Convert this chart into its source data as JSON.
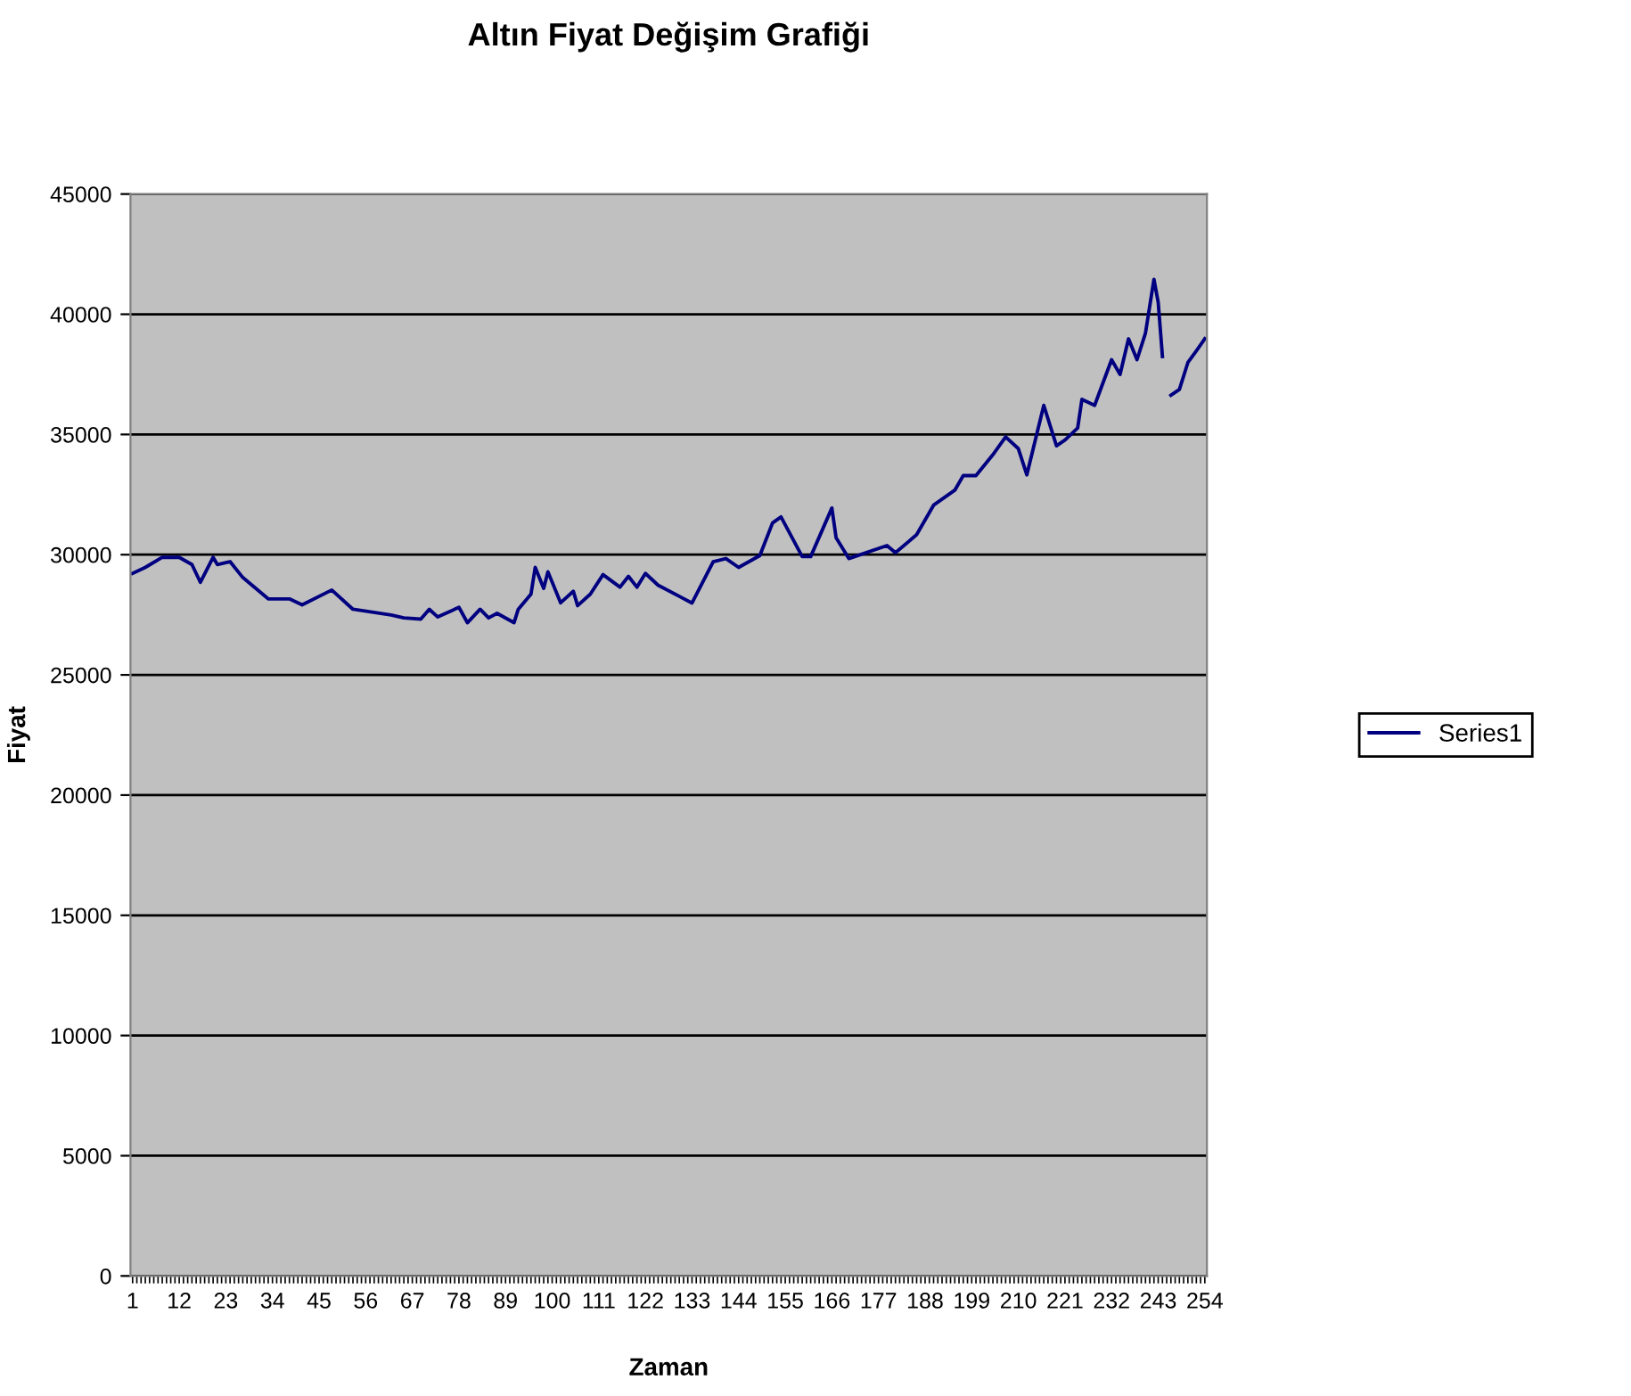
{
  "chart_data": {
    "type": "line",
    "title": "Altın Fiyat Değişim Grafiği",
    "xlabel": "Zaman",
    "ylabel": "Fiyat",
    "series": [
      {
        "name": "Series1",
        "color": "#000080",
        "x": [
          1,
          4,
          8,
          12,
          15,
          17,
          20,
          21,
          24,
          27,
          33,
          38,
          41,
          48,
          53,
          62,
          65,
          69,
          71,
          73,
          78,
          80,
          83,
          85,
          87,
          91,
          92,
          95,
          96,
          98,
          99,
          102,
          105,
          106,
          109,
          112,
          116,
          118,
          120,
          122,
          125,
          133,
          138,
          141,
          144,
          149,
          152,
          154,
          159,
          161,
          166,
          167,
          170,
          174,
          179,
          181,
          186,
          190,
          195,
          197,
          200,
          204,
          207,
          210,
          212,
          216,
          219,
          221,
          224,
          225,
          228,
          232,
          234,
          236,
          238,
          240,
          242,
          243,
          244,
          245,
          246,
          248,
          250,
          252,
          254
        ],
        "values": [
          29220,
          29470,
          29890,
          29890,
          29590,
          28850,
          29890,
          29590,
          29710,
          29050,
          28160,
          28160,
          27910,
          28530,
          27730,
          27490,
          27370,
          27320,
          27730,
          27410,
          27810,
          27170,
          27730,
          27370,
          27560,
          27170,
          27730,
          28360,
          29470,
          28600,
          29290,
          28000,
          28480,
          27880,
          28360,
          29170,
          28650,
          29100,
          28650,
          29220,
          28730,
          27990,
          29710,
          29840,
          29470,
          29960,
          31320,
          31570,
          29920,
          29920,
          31940,
          30700,
          29840,
          30080,
          30380,
          30080,
          30830,
          32060,
          32680,
          33290,
          33290,
          34160,
          34900,
          34410,
          33320,
          36210,
          34530,
          34770,
          35270,
          36460,
          36210,
          38110,
          37500,
          38980,
          38110,
          39220,
          41450,
          40500,
          38240,
          null,
          36630,
          36870,
          37990,
          38480,
          38980
        ]
      }
    ],
    "ylim": [
      0,
      45000
    ],
    "yticks": [
      0,
      5000,
      10000,
      15000,
      20000,
      25000,
      30000,
      35000,
      40000,
      45000
    ],
    "xlim": [
      0.5,
      254.5
    ],
    "xticks": [
      1,
      {
        "value": 2,
        "label": null
      },
      {
        "value": 3,
        "label": null
      },
      {
        "value": 4,
        "label": null
      },
      {
        "value": 5,
        "label": null
      },
      {
        "value": 6,
        "label": null
      },
      {
        "value": 7,
        "label": null
      },
      {
        "value": 8,
        "label": null
      },
      {
        "value": 9,
        "label": null
      },
      {
        "value": 10,
        "label": null
      },
      {
        "value": 11,
        "label": null
      },
      12,
      {
        "value": 13,
        "label": null
      },
      {
        "value": 14,
        "label": null
      },
      {
        "value": 15,
        "label": null
      },
      {
        "value": 16,
        "label": null
      },
      {
        "value": 17,
        "label": null
      },
      {
        "value": 18,
        "label": null
      },
      {
        "value": 19,
        "label": null
      },
      {
        "value": 20,
        "label": null
      },
      {
        "value": 21,
        "label": null
      },
      {
        "value": 22,
        "label": null
      },
      23,
      {
        "value": 24,
        "label": null
      },
      {
        "value": 25,
        "label": null
      },
      {
        "value": 26,
        "label": null
      },
      {
        "value": 27,
        "label": null
      },
      {
        "value": 28,
        "label": null
      },
      {
        "value": 29,
        "label": null
      },
      {
        "value": 30,
        "label": null
      },
      {
        "value": 31,
        "label": null
      },
      {
        "value": 32,
        "label": null
      },
      {
        "value": 33,
        "label": null
      },
      34,
      {
        "value": 35,
        "label": null
      },
      {
        "value": 36,
        "label": null
      },
      {
        "value": 37,
        "label": null
      },
      {
        "value": 38,
        "label": null
      },
      {
        "value": 39,
        "label": null
      },
      {
        "value": 40,
        "label": null
      },
      {
        "value": 41,
        "label": null
      },
      {
        "value": 42,
        "label": null
      },
      {
        "value": 43,
        "label": null
      },
      {
        "value": 44,
        "label": null
      },
      45,
      {
        "value": 46,
        "label": null
      },
      {
        "value": 47,
        "label": null
      },
      {
        "value": 48,
        "label": null
      },
      {
        "value": 49,
        "label": null
      },
      {
        "value": 50,
        "label": null
      },
      {
        "value": 51,
        "label": null
      },
      {
        "value": 52,
        "label": null
      },
      {
        "value": 53,
        "label": null
      },
      {
        "value": 54,
        "label": null
      },
      {
        "value": 55,
        "label": null
      },
      56,
      {
        "value": 57,
        "label": null
      },
      {
        "value": 58,
        "label": null
      },
      {
        "value": 59,
        "label": null
      },
      {
        "value": 60,
        "label": null
      },
      {
        "value": 61,
        "label": null
      },
      {
        "value": 62,
        "label": null
      },
      {
        "value": 63,
        "label": null
      },
      {
        "value": 64,
        "label": null
      },
      {
        "value": 65,
        "label": null
      },
      {
        "value": 66,
        "label": null
      },
      67,
      {
        "value": 68,
        "label": null
      },
      {
        "value": 69,
        "label": null
      },
      {
        "value": 70,
        "label": null
      },
      {
        "value": 71,
        "label": null
      },
      {
        "value": 72,
        "label": null
      },
      {
        "value": 73,
        "label": null
      },
      {
        "value": 74,
        "label": null
      },
      {
        "value": 75,
        "label": null
      },
      {
        "value": 76,
        "label": null
      },
      {
        "value": 77,
        "label": null
      },
      78,
      {
        "value": 79,
        "label": null
      },
      {
        "value": 80,
        "label": null
      },
      {
        "value": 81,
        "label": null
      },
      {
        "value": 82,
        "label": null
      },
      {
        "value": 83,
        "label": null
      },
      {
        "value": 84,
        "label": null
      },
      {
        "value": 85,
        "label": null
      },
      {
        "value": 86,
        "label": null
      },
      {
        "value": 87,
        "label": null
      },
      {
        "value": 88,
        "label": null
      },
      89,
      {
        "value": 90,
        "label": null
      },
      {
        "value": 91,
        "label": null
      },
      {
        "value": 92,
        "label": null
      },
      {
        "value": 93,
        "label": null
      },
      {
        "value": 94,
        "label": null
      },
      {
        "value": 95,
        "label": null
      },
      {
        "value": 96,
        "label": null
      },
      {
        "value": 97,
        "label": null
      },
      {
        "value": 98,
        "label": null
      },
      {
        "value": 99,
        "label": null
      },
      100,
      {
        "value": 101,
        "label": null
      },
      {
        "value": 102,
        "label": null
      },
      {
        "value": 103,
        "label": null
      },
      {
        "value": 104,
        "label": null
      },
      {
        "value": 105,
        "label": null
      },
      {
        "value": 106,
        "label": null
      },
      {
        "value": 107,
        "label": null
      },
      {
        "value": 108,
        "label": null
      },
      {
        "value": 109,
        "label": null
      },
      {
        "value": 110,
        "label": null
      },
      111,
      {
        "value": 112,
        "label": null
      },
      {
        "value": 113,
        "label": null
      },
      {
        "value": 114,
        "label": null
      },
      {
        "value": 115,
        "label": null
      },
      {
        "value": 116,
        "label": null
      },
      {
        "value": 117,
        "label": null
      },
      {
        "value": 118,
        "label": null
      },
      {
        "value": 119,
        "label": null
      },
      {
        "value": 120,
        "label": null
      },
      {
        "value": 121,
        "label": null
      },
      122,
      {
        "value": 123,
        "label": null
      },
      {
        "value": 124,
        "label": null
      },
      {
        "value": 125,
        "label": null
      },
      {
        "value": 126,
        "label": null
      },
      {
        "value": 127,
        "label": null
      },
      {
        "value": 128,
        "label": null
      },
      {
        "value": 129,
        "label": null
      },
      {
        "value": 130,
        "label": null
      },
      {
        "value": 131,
        "label": null
      },
      {
        "value": 132,
        "label": null
      },
      133,
      {
        "value": 134,
        "label": null
      },
      {
        "value": 135,
        "label": null
      },
      {
        "value": 136,
        "label": null
      },
      {
        "value": 137,
        "label": null
      },
      {
        "value": 138,
        "label": null
      },
      {
        "value": 139,
        "label": null
      },
      {
        "value": 140,
        "label": null
      },
      {
        "value": 141,
        "label": null
      },
      {
        "value": 142,
        "label": null
      },
      {
        "value": 143,
        "label": null
      },
      144,
      {
        "value": 145,
        "label": null
      },
      {
        "value": 146,
        "label": null
      },
      {
        "value": 147,
        "label": null
      },
      {
        "value": 148,
        "label": null
      },
      {
        "value": 149,
        "label": null
      },
      {
        "value": 150,
        "label": null
      },
      {
        "value": 151,
        "label": null
      },
      {
        "value": 152,
        "label": null
      },
      {
        "value": 153,
        "label": null
      },
      {
        "value": 154,
        "label": null
      },
      155,
      {
        "value": 156,
        "label": null
      },
      {
        "value": 157,
        "label": null
      },
      {
        "value": 158,
        "label": null
      },
      {
        "value": 159,
        "label": null
      },
      {
        "value": 160,
        "label": null
      },
      {
        "value": 161,
        "label": null
      },
      {
        "value": 162,
        "label": null
      },
      {
        "value": 163,
        "label": null
      },
      {
        "value": 164,
        "label": null
      },
      {
        "value": 165,
        "label": null
      },
      166,
      {
        "value": 167,
        "label": null
      },
      {
        "value": 168,
        "label": null
      },
      {
        "value": 169,
        "label": null
      },
      {
        "value": 170,
        "label": null
      },
      {
        "value": 171,
        "label": null
      },
      {
        "value": 172,
        "label": null
      },
      {
        "value": 173,
        "label": null
      },
      {
        "value": 174,
        "label": null
      },
      {
        "value": 175,
        "label": null
      },
      {
        "value": 176,
        "label": null
      },
      177,
      {
        "value": 178,
        "label": null
      },
      {
        "value": 179,
        "label": null
      },
      {
        "value": 180,
        "label": null
      },
      {
        "value": 181,
        "label": null
      },
      {
        "value": 182,
        "label": null
      },
      {
        "value": 183,
        "label": null
      },
      {
        "value": 184,
        "label": null
      },
      {
        "value": 185,
        "label": null
      },
      {
        "value": 186,
        "label": null
      },
      {
        "value": 187,
        "label": null
      },
      188,
      {
        "value": 189,
        "label": null
      },
      {
        "value": 190,
        "label": null
      },
      {
        "value": 191,
        "label": null
      },
      {
        "value": 192,
        "label": null
      },
      {
        "value": 193,
        "label": null
      },
      {
        "value": 194,
        "label": null
      },
      {
        "value": 195,
        "label": null
      },
      {
        "value": 196,
        "label": null
      },
      {
        "value": 197,
        "label": null
      },
      {
        "value": 198,
        "label": null
      },
      199,
      {
        "value": 200,
        "label": null
      },
      {
        "value": 201,
        "label": null
      },
      {
        "value": 202,
        "label": null
      },
      {
        "value": 203,
        "label": null
      },
      {
        "value": 204,
        "label": null
      },
      {
        "value": 205,
        "label": null
      },
      {
        "value": 206,
        "label": null
      },
      {
        "value": 207,
        "label": null
      },
      {
        "value": 208,
        "label": null
      },
      {
        "value": 209,
        "label": null
      },
      210,
      {
        "value": 211,
        "label": null
      },
      {
        "value": 212,
        "label": null
      },
      {
        "value": 213,
        "label": null
      },
      {
        "value": 214,
        "label": null
      },
      {
        "value": 215,
        "label": null
      },
      {
        "value": 216,
        "label": null
      },
      {
        "value": 217,
        "label": null
      },
      {
        "value": 218,
        "label": null
      },
      {
        "value": 219,
        "label": null
      },
      {
        "value": 220,
        "label": null
      },
      221,
      {
        "value": 222,
        "label": null
      },
      {
        "value": 223,
        "label": null
      },
      {
        "value": 224,
        "label": null
      },
      {
        "value": 225,
        "label": null
      },
      {
        "value": 226,
        "label": null
      },
      {
        "value": 227,
        "label": null
      },
      {
        "value": 228,
        "label": null
      },
      {
        "value": 229,
        "label": null
      },
      {
        "value": 230,
        "label": null
      },
      {
        "value": 231,
        "label": null
      },
      232,
      {
        "value": 233,
        "label": null
      },
      {
        "value": 234,
        "label": null
      },
      {
        "value": 235,
        "label": null
      },
      {
        "value": 236,
        "label": null
      },
      {
        "value": 237,
        "label": null
      },
      {
        "value": 238,
        "label": null
      },
      {
        "value": 239,
        "label": null
      },
      {
        "value": 240,
        "label": null
      },
      {
        "value": 241,
        "label": null
      },
      {
        "value": 242,
        "label": null
      },
      243,
      {
        "value": 244,
        "label": null
      },
      {
        "value": 245,
        "label": null
      },
      {
        "value": 246,
        "label": null
      },
      {
        "value": 247,
        "label": null
      },
      {
        "value": 248,
        "label": null
      },
      {
        "value": 249,
        "label": null
      },
      {
        "value": 250,
        "label": null
      },
      {
        "value": 251,
        "label": null
      },
      {
        "value": 252,
        "label": null
      },
      {
        "value": 253,
        "label": null
      },
      254
    ],
    "grid": "y",
    "legend": "right",
    "marker": "none",
    "line_style": "solid"
  }
}
